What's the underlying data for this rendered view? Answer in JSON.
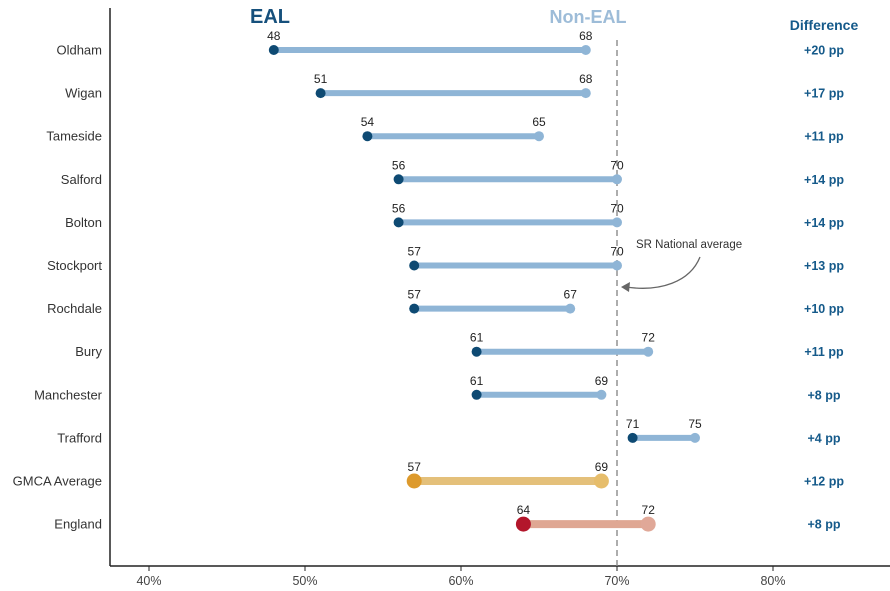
{
  "chart_data": {
    "type": "dumbbell",
    "series_names": {
      "start": "EAL",
      "end": "Non-EAL"
    },
    "difference_header": "Difference",
    "categories": [
      "Oldham",
      "Wigan",
      "Tameside",
      "Salford",
      "Bolton",
      "Stockport",
      "Rochdale",
      "Bury",
      "Manchester",
      "Trafford",
      "GMCA Average",
      "England"
    ],
    "eal": [
      48,
      51,
      54,
      56,
      56,
      57,
      57,
      61,
      61,
      71,
      57,
      64
    ],
    "non_eal": [
      68,
      68,
      65,
      70,
      70,
      70,
      67,
      72,
      69,
      75,
      69,
      72
    ],
    "difference": [
      "+20 pp",
      "+17 pp",
      "+11 pp",
      "+14 pp",
      "+14 pp",
      "+13 pp",
      "+10 pp",
      "+11 pp",
      "+8 pp",
      "+4 pp",
      "+12 pp",
      "+8 pp"
    ],
    "xlim": [
      37.5,
      87.5
    ],
    "xticks": [
      40,
      50,
      60,
      70,
      80
    ],
    "xtick_labels": [
      "40%",
      "50%",
      "60%",
      "70%",
      "80%"
    ],
    "reference_line": {
      "value": 70,
      "label": "SR National average"
    },
    "colors": {
      "eal": "#0e4a73",
      "non_eal": "#8fb5d6",
      "bar": "#8fb5d6",
      "gmca_eal": "#dd9a2c",
      "gmca_non_eal": "#e6bd6b",
      "gmca_bar": "#e4c07a",
      "england_eal": "#b3162b",
      "england_non_eal": "#e0a898",
      "england_bar": "#dfa793",
      "header_eal": "#16507c",
      "header_non_eal": "#9dbcd8",
      "difference": "#155a8a"
    }
  }
}
